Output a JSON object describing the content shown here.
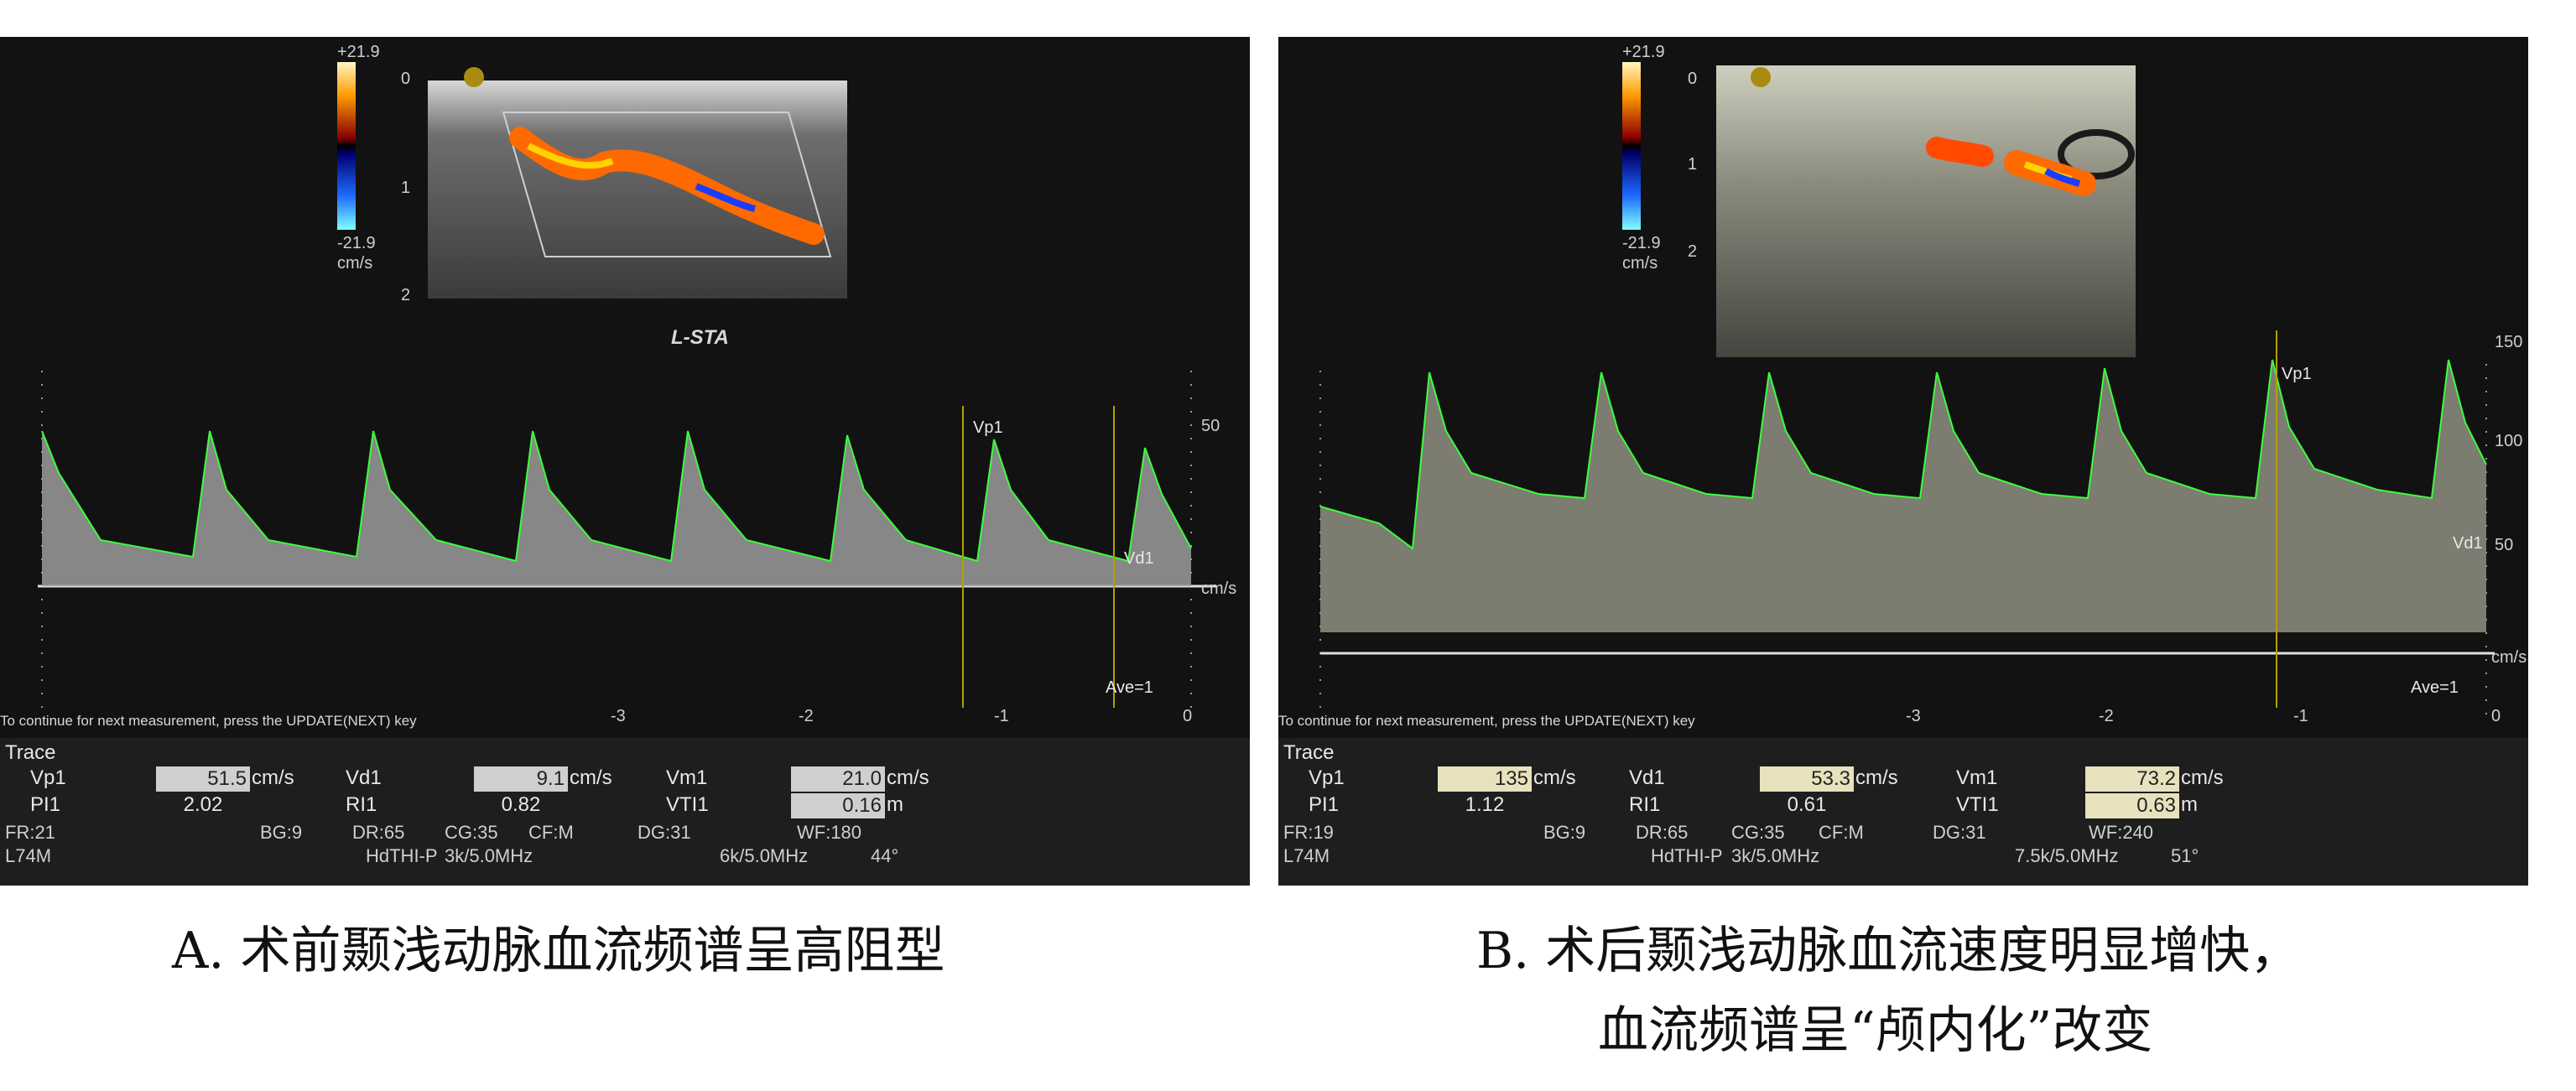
{
  "panel_a": {
    "colorbar": {
      "top": "+21.9",
      "bottom": "-21.9",
      "unit": "cm/s"
    },
    "depth_ticks": [
      "0",
      "1",
      "2"
    ],
    "region": "L-STA",
    "velocity_label": "50",
    "velocity_unit": "cm/s",
    "markers": {
      "peak": "Vp1",
      "diastolic": "Vd1",
      "ave": "Ave=1"
    },
    "time_ticks": [
      "-3",
      "-2",
      "-1",
      "0"
    ],
    "hint": "To continue for next measurement, press the UPDATE(NEXT) key",
    "trace_title": "Trace",
    "row1": [
      {
        "label": "Vp1",
        "value": "51.5",
        "unit": "cm/s"
      },
      {
        "label": "Vd1",
        "value": "9.1",
        "unit": "cm/s"
      },
      {
        "label": "Vm1",
        "value": "21.0",
        "unit": "cm/s"
      }
    ],
    "row2": [
      {
        "label": "PI1",
        "value": "2.02"
      },
      {
        "label": "RI1",
        "value": "0.82"
      },
      {
        "label": "VTI1",
        "value": "0.16",
        "unit": "m"
      }
    ],
    "params": {
      "fr": "FR:21",
      "bg": "BG:9",
      "dr": "DR:65",
      "cg": "CG:35",
      "cf": "CF:M",
      "dg": "DG:31",
      "wf": "WF:180",
      "probe": "L74M",
      "mode": "HdTHI-P",
      "freq": "3k/5.0MHz",
      "freq2": "6k/5.0MHz",
      "angle": "44°"
    },
    "caption": "A. 术前颞浅动脉血流频谱呈高阻型"
  },
  "panel_b": {
    "colorbar": {
      "top": "+21.9",
      "bottom": "-21.9",
      "unit": "cm/s"
    },
    "depth_ticks": [
      "0",
      "1",
      "2"
    ],
    "velocity_labels": [
      "150",
      "100",
      "50"
    ],
    "velocity_unit": "cm/s",
    "markers": {
      "peak": "Vp1",
      "diastolic": "Vd1",
      "ave": "Ave=1"
    },
    "time_ticks": [
      "-3",
      "-2",
      "-1",
      "0"
    ],
    "hint": "To continue for next measurement, press the UPDATE(NEXT) key",
    "trace_title": "Trace",
    "row1": [
      {
        "label": "Vp1",
        "value": "135",
        "unit": "cm/s"
      },
      {
        "label": "Vd1",
        "value": "53.3",
        "unit": "cm/s"
      },
      {
        "label": "Vm1",
        "value": "73.2",
        "unit": "cm/s"
      }
    ],
    "row2": [
      {
        "label": "PI1",
        "value": "1.12"
      },
      {
        "label": "RI1",
        "value": "0.61"
      },
      {
        "label": "VTI1",
        "value": "0.63",
        "unit": "m"
      }
    ],
    "params": {
      "fr": "FR:19",
      "bg": "BG:9",
      "dr": "DR:65",
      "cg": "CG:35",
      "cf": "CF:M",
      "dg": "DG:31",
      "wf": "WF:240",
      "probe": "L74M",
      "mode": "HdTHI-P",
      "freq": "3k/5.0MHz",
      "freq2": "7.5k/5.0MHz",
      "angle": "51°"
    },
    "caption_line1": "B. 术后颞浅动脉血流速度明显增快，",
    "caption_line2": "血流频谱呈“颅内化”改变"
  }
}
